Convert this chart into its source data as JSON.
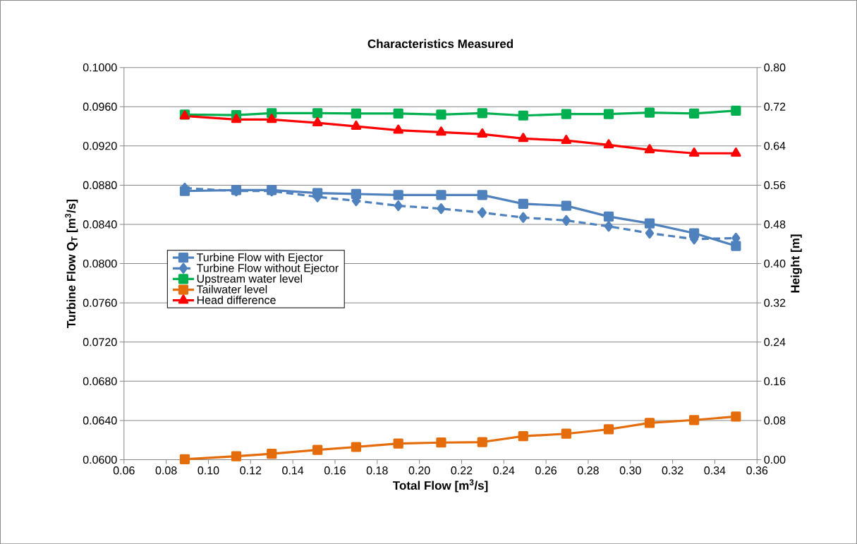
{
  "chart_data": {
    "type": "line",
    "title": "Characteristics Measured",
    "xlabel": "Total Flow [m$^{3}$/s]",
    "ylabel": "Turbine Flow Q$_{T}$ [m$^{3}$/s]",
    "y2label": "Height [m]",
    "x": [
      0.0888,
      0.1132,
      0.13,
      0.1517,
      0.17,
      0.19,
      0.2103,
      0.2298,
      0.2492,
      0.2696,
      0.2897,
      0.3091,
      0.3302,
      0.35
    ],
    "series": [
      {
        "name": "Turbine Flow with Ejector",
        "color": "#4f81bd",
        "axis": "y",
        "marker": "square",
        "line_style": "solid",
        "values": [
          0.0874,
          0.0875,
          0.0875,
          0.0872,
          0.0871,
          0.087,
          0.087,
          0.087,
          0.0861,
          0.0859,
          0.0848,
          0.0841,
          0.0831,
          0.0818
        ]
      },
      {
        "name": "Turbine Flow without Ejector",
        "color": "#4f81bd",
        "axis": "y",
        "marker": "diamond",
        "line_style": "dashed",
        "values": [
          0.0877,
          0.0874,
          0.0874,
          0.0868,
          0.0864,
          0.0859,
          0.0856,
          0.0852,
          0.0847,
          0.0844,
          0.0838,
          0.0831,
          0.0825,
          0.0826
        ]
      },
      {
        "name": "Upstream water level",
        "color": "#00b050",
        "axis": "y2",
        "marker": "square",
        "line_style": "solid",
        "values": [
          0.704,
          0.703,
          0.707,
          0.707,
          0.706,
          0.706,
          0.704,
          0.707,
          0.702,
          0.705,
          0.705,
          0.708,
          0.706,
          0.712
        ]
      },
      {
        "name": "Tailwater level",
        "color": "#e46c0a",
        "axis": "y2",
        "marker": "square",
        "line_style": "solid",
        "values": [
          0.001,
          0.007,
          0.012,
          0.02,
          0.026,
          0.033,
          0.035,
          0.036,
          0.048,
          0.053,
          0.062,
          0.075,
          0.081,
          0.088
        ]
      },
      {
        "name": "Head difference",
        "color": "#ff0000",
        "axis": "y2",
        "marker": "triangle",
        "line_style": "solid",
        "values": [
          0.701,
          0.694,
          0.694,
          0.687,
          0.68,
          0.672,
          0.668,
          0.664,
          0.655,
          0.651,
          0.642,
          0.632,
          0.625,
          0.625
        ]
      }
    ],
    "xlim": [
      0.06,
      0.36
    ],
    "xticks": [
      {
        "value": 0.06,
        "label": "0.06"
      },
      {
        "value": 0.08,
        "label": "0.08"
      },
      {
        "value": 0.1,
        "label": "0.10"
      },
      {
        "value": 0.12,
        "label": "0.12"
      },
      {
        "value": 0.14,
        "label": "0.14"
      },
      {
        "value": 0.16,
        "label": "0.16"
      },
      {
        "value": 0.18,
        "label": "0.18"
      },
      {
        "value": 0.2,
        "label": "0.20"
      },
      {
        "value": 0.22,
        "label": "0.22"
      },
      {
        "value": 0.24,
        "label": "0.24"
      },
      {
        "value": 0.26,
        "label": "0.26"
      },
      {
        "value": 0.28,
        "label": "0.28"
      },
      {
        "value": 0.3,
        "label": "0.30"
      },
      {
        "value": 0.32,
        "label": "0.32"
      },
      {
        "value": 0.34,
        "label": "0.34"
      },
      {
        "value": 0.36,
        "label": "0.36"
      }
    ],
    "ylim": [
      0.06,
      0.1
    ],
    "yticks": [
      {
        "value": 0.06,
        "label": "0.0600"
      },
      {
        "value": 0.064,
        "label": "0.0640"
      },
      {
        "value": 0.068,
        "label": "0.0680"
      },
      {
        "value": 0.072,
        "label": "0.0720"
      },
      {
        "value": 0.076,
        "label": "0.0760"
      },
      {
        "value": 0.08,
        "label": "0.0800"
      },
      {
        "value": 0.084,
        "label": "0.0840"
      },
      {
        "value": 0.088,
        "label": "0.0880"
      },
      {
        "value": 0.092,
        "label": "0.0920"
      },
      {
        "value": 0.096,
        "label": "0.0960"
      },
      {
        "value": 0.1,
        "label": "0.1000"
      }
    ],
    "y2lim": [
      0,
      0.8
    ],
    "y2ticks": [
      {
        "value": 0,
        "label": "0.00"
      },
      {
        "value": 0.08,
        "label": "0.08"
      },
      {
        "value": 0.16,
        "label": "0.16"
      },
      {
        "value": 0.24,
        "label": "0.24"
      },
      {
        "value": 0.32,
        "label": "0.32"
      },
      {
        "value": 0.4,
        "label": "0.40"
      },
      {
        "value": 0.48,
        "label": "0.48"
      },
      {
        "value": 0.56,
        "label": "0.56"
      },
      {
        "value": 0.64,
        "label": "0.64"
      },
      {
        "value": 0.72,
        "label": "0.72"
      },
      {
        "value": 0.8,
        "label": "0.80"
      }
    ],
    "grid": "y",
    "legend": "left"
  }
}
